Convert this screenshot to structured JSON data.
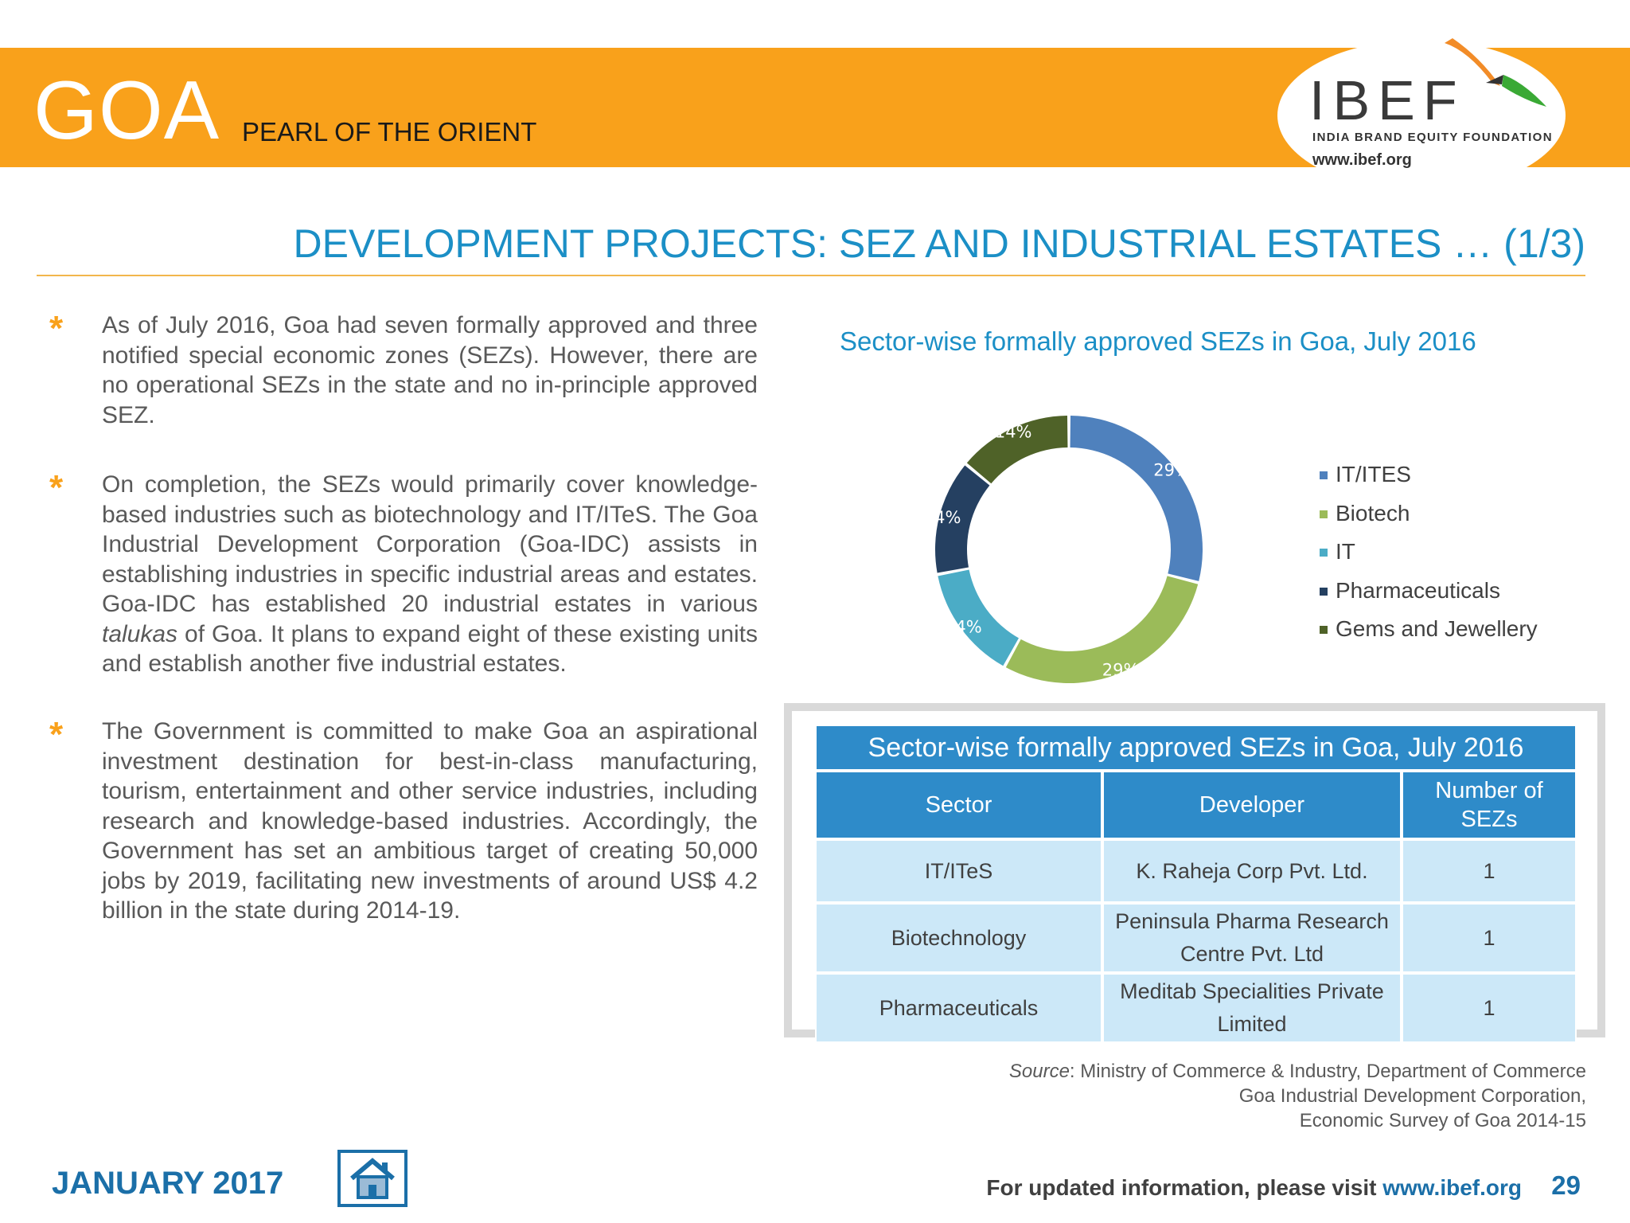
{
  "header": {
    "state_name": "GOA",
    "tagline": "PEARL OF THE ORIENT",
    "logo": {
      "name": "IBEF",
      "subtitle": "INDIA BRAND EQUITY FOUNDATION",
      "url": "www.ibef.org"
    }
  },
  "page_title": "DEVELOPMENT PROJECTS: SEZ AND INDUSTRIAL ESTATES … (1/3)",
  "bullets": [
    {
      "text_before": "As of July 2016, Goa had seven formally approved and three notified special economic zones (SEZs). However, there are no operational SEZs in the state and no in-principle approved SEZ.",
      "italic": "",
      "text_after": ""
    },
    {
      "text_before": "On completion, the SEZs would primarily cover knowledge-based industries such as biotechnology and IT/ITeS. The Goa Industrial Development Corporation (Goa-IDC) assists in establishing industries in specific industrial areas and estates. Goa-IDC has established 20 industrial estates in various ",
      "italic": "talukas",
      "text_after": " of Goa. It plans to expand eight of these existing units and establish another five industrial estates."
    },
    {
      "text_before": "The Government is committed to make Goa an aspirational investment destination for best-in-class manufacturing, tourism, entertainment and other service industries, including research and knowledge-based industries. Accordingly, the Government has set an ambitious target of creating 50,000 jobs by 2019, facilitating new investments of around US$ 4.2 billion in the state during 2014-19.",
      "italic": "",
      "text_after": ""
    }
  ],
  "chart_data": {
    "type": "pie",
    "variant": "donut",
    "title": "Sector-wise formally approved SEZs in Goa, July 2016",
    "legend_position": "right",
    "categories": [
      "IT/ITES",
      "Biotech",
      "IT",
      "Pharmaceuticals",
      "Gems and Jewellery"
    ],
    "values": [
      29,
      29,
      14,
      14,
      14
    ],
    "labels": [
      "29%",
      "29%",
      "14%",
      "14%",
      "14%"
    ],
    "colors": [
      "#4f81bd",
      "#9bbb59",
      "#4bacc6",
      "#254061",
      "#4f6228"
    ]
  },
  "table": {
    "caption": "Sector-wise formally approved SEZs in Goa, July 2016",
    "columns": [
      "Sector",
      "Developer",
      "Number of SEZs"
    ],
    "rows": [
      {
        "sector": "IT/ITeS",
        "developer": "K. Raheja Corp Pvt. Ltd.",
        "count": "1"
      },
      {
        "sector": "Biotechnology",
        "developer": "Peninsula Pharma Research Centre Pvt. Ltd",
        "count": "1"
      },
      {
        "sector": "Pharmaceuticals",
        "developer": "Meditab Specialities Private Limited",
        "count": "1"
      }
    ]
  },
  "source": {
    "label": "Source",
    "line1": ": Ministry of Commerce & Industry, Department of Commerce",
    "line2": "Goa Industrial Development Corporation,",
    "line3": "Economic Survey of Goa 2014-15"
  },
  "footer": {
    "date": "JANUARY 2017",
    "info_text": "For updated information, please visit ",
    "info_url": "www.ibef.org",
    "page_number": "29"
  },
  "colors": {
    "header_orange": "#f9a11b",
    "title_blue": "#1b8fc6",
    "table_header_blue": "#2e8bc9",
    "table_cell_light_blue": "#cce8f8",
    "footer_blue": "#1b6fa8"
  }
}
